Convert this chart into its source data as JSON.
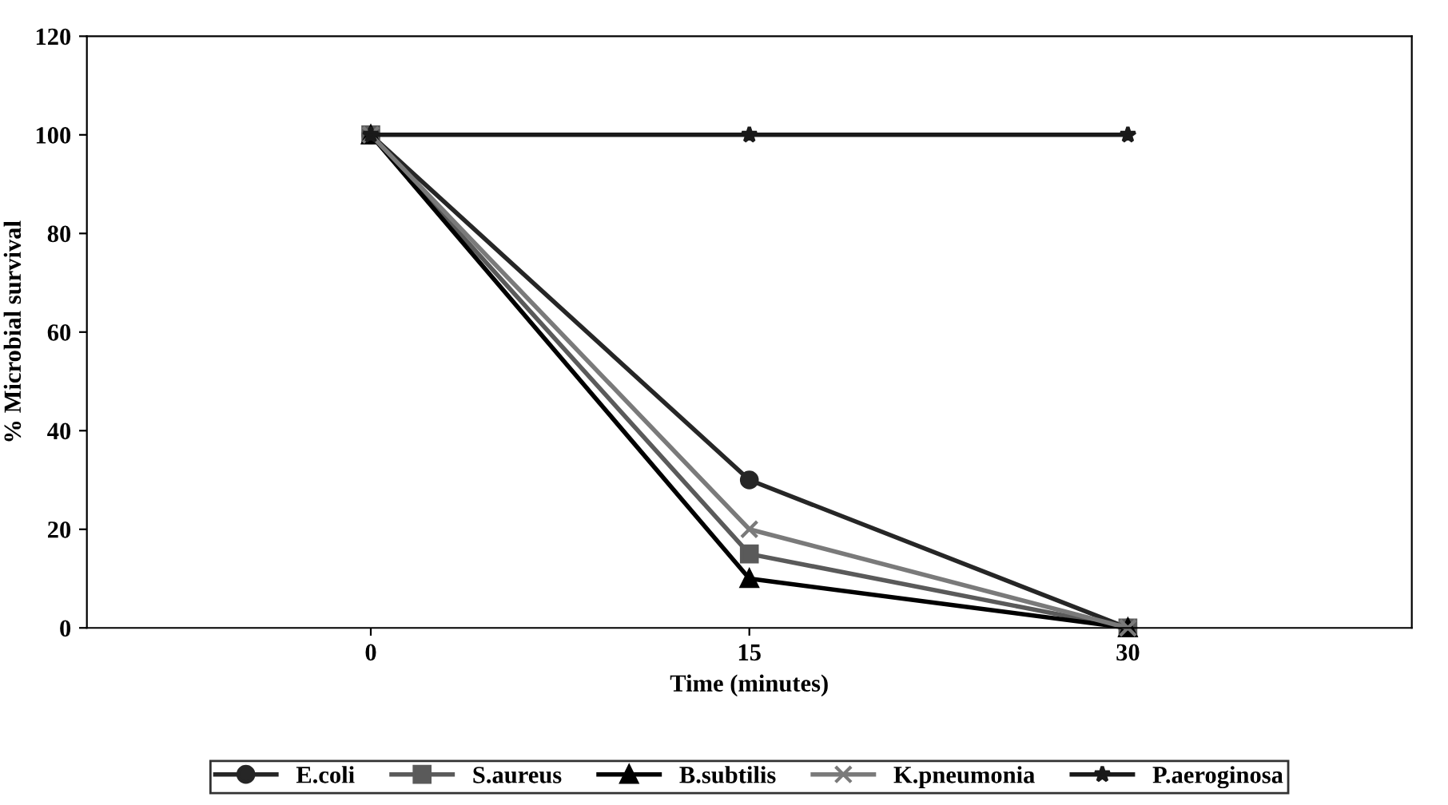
{
  "chart_data": {
    "type": "line",
    "xlabel": "Time (minutes)",
    "ylabel": "% Microbial survival",
    "categories": [
      "0",
      "15",
      "30"
    ],
    "ylim": [
      0,
      120
    ],
    "yticks": [
      0,
      20,
      40,
      60,
      80,
      100,
      120
    ],
    "grid": false,
    "legend": "bottom",
    "line_style": "solid",
    "series": [
      {
        "name": "E.coli",
        "color": "#262626",
        "marker": "circle",
        "values": [
          100,
          30,
          0
        ]
      },
      {
        "name": "S.aureus",
        "color": "#5a5a5a",
        "marker": "square",
        "values": [
          100,
          15,
          0
        ]
      },
      {
        "name": "B.subtilis",
        "color": "#000000",
        "marker": "triangle",
        "values": [
          100,
          10,
          0
        ]
      },
      {
        "name": "K.pneumonia",
        "color": "#7a7a7a",
        "marker": "cross",
        "values": [
          100,
          20,
          0
        ]
      },
      {
        "name": "P.aeroginosa",
        "color": "#1a1a1a",
        "marker": "star",
        "values": [
          100,
          100,
          100
        ]
      }
    ]
  }
}
